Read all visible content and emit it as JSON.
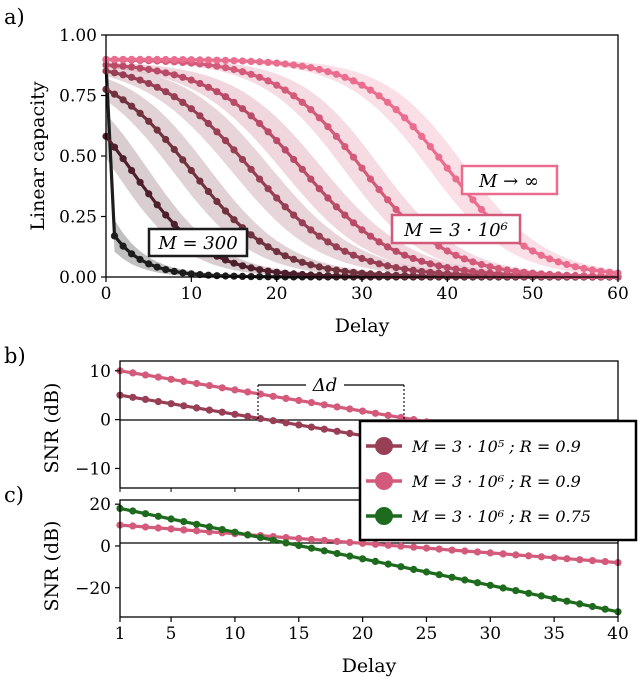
{
  "colors": {
    "black": "#1c1c1c",
    "m1": "#4d1f2b",
    "m2": "#71323f",
    "m3": "#983e55",
    "m4": "#b94b69",
    "m5": "#d35a7b",
    "minf": "#ea6d8f",
    "r075": "#1e6b1e",
    "axes": "#000000"
  },
  "labels": {
    "panel_a": "a)",
    "panel_b": "b)",
    "panel_c": "c)",
    "a_xlabel": "Delay",
    "a_ylabel": "Linear capacity",
    "bc_ylabel": "SNR (dB)",
    "c_xlabel": "Delay",
    "box_m300": "M = 300",
    "box_m3e6": "M = 3 · 10⁶",
    "box_minf": "M → ∞",
    "delta_d": "Δd",
    "legend": [
      "M = 3 · 10⁵ ;  R = 0.9",
      "M = 3 · 10⁶ ;  R = 0.9",
      "M = 3 · 10⁶ ;  R = 0.75"
    ]
  },
  "chart_data": [
    {
      "type": "line",
      "panel": "a",
      "xlabel": "Delay",
      "ylabel": "Linear capacity",
      "xlim": [
        0,
        60
      ],
      "ylim": [
        0,
        1.0
      ],
      "xticks": [
        "0",
        "10",
        "20",
        "30",
        "40",
        "50",
        "60"
      ],
      "yticks": [
        "0.00",
        "0.25",
        "0.50",
        "0.75",
        "1.00"
      ],
      "band": "shaded spread around each curve",
      "series": [
        {
          "label": "M = 300",
          "color": "black",
          "y0": 0.88,
          "curve": "drop to 0.15 at delay 1, then decays to 0 by ~20",
          "midpoint": 0.3,
          "width": 3
        },
        {
          "color": "m1",
          "y0": 0.88,
          "midpoint": 3,
          "width": 4.5
        },
        {
          "color": "m2",
          "y0": 0.88,
          "midpoint": 10,
          "width": 5
        },
        {
          "color": "m3",
          "y0": 0.89,
          "midpoint": 17,
          "width": 5.5
        },
        {
          "color": "m4",
          "y0": 0.89,
          "midpoint": 23,
          "width": 5.5
        },
        {
          "label": "M = 3 · 10⁶",
          "color": "m5",
          "y0": 0.9,
          "midpoint": 30,
          "width": 5
        },
        {
          "label": "M → ∞",
          "color": "minf",
          "y0": 0.9,
          "midpoint": 40,
          "width": 5
        }
      ]
    },
    {
      "type": "line",
      "panel": "b",
      "ylabel": "SNR (dB)",
      "xlim": [
        1,
        40
      ],
      "ylim": [
        -14,
        12
      ],
      "yticks": [
        "10",
        "0",
        "−10"
      ],
      "annotation": {
        "text": "Δd",
        "from_delay": 12,
        "to_delay": 23
      },
      "series": [
        {
          "name": "M = 3 · 10⁵ ;  R = 0.9",
          "color": "m3",
          "x_range": [
            1,
            40
          ],
          "y_at_1": 5.0,
          "slope_per_delay": -0.435
        },
        {
          "name": "M = 3 · 10⁶ ;  R = 0.9",
          "color": "m5",
          "x_range": [
            1,
            40
          ],
          "y_at_1": 10.0,
          "slope_per_delay": -0.435
        }
      ]
    },
    {
      "type": "line",
      "panel": "c",
      "xlabel": "Delay",
      "ylabel": "SNR (dB)",
      "xlim": [
        1,
        40
      ],
      "ylim": [
        -34,
        22
      ],
      "xticks": [
        "1",
        "5",
        "10",
        "15",
        "20",
        "25",
        "30",
        "35",
        "40"
      ],
      "yticks": [
        "20",
        "0",
        "−20"
      ],
      "series": [
        {
          "name": "M = 3 · 10⁶ ;  R = 0.9",
          "color": "m5",
          "x_range": [
            1,
            40
          ],
          "y_at_1": 10.0,
          "slope_per_delay": -0.46
        },
        {
          "name": "M = 3 · 10⁶ ;  R = 0.75",
          "color": "r075",
          "x_range": [
            1,
            40
          ],
          "y_at_1": 18.0,
          "slope_per_delay": -1.27
        }
      ]
    }
  ]
}
